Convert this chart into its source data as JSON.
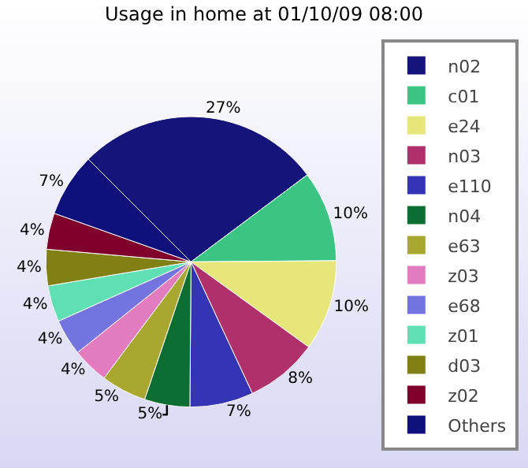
{
  "chart_data": {
    "type": "pie",
    "title": "Usage in home at 01/10/09 08:00",
    "categories": [
      "n02",
      "c01",
      "e24",
      "n03",
      "e110",
      "n04",
      "e63",
      "z03",
      "e68",
      "z01",
      "d03",
      "z02",
      "Others"
    ],
    "values": [
      27,
      10,
      10,
      8,
      7,
      5,
      5,
      4,
      4,
      4,
      4,
      4,
      7
    ],
    "value_labels": [
      "27%",
      "10%",
      "10%",
      "8%",
      "7%",
      "5%",
      "5%",
      "4%",
      "4%",
      "4%",
      "4%",
      "4%",
      "7%"
    ],
    "colors": [
      "#14147a",
      "#3cc484",
      "#e6e67a",
      "#b0306c",
      "#3434b4",
      "#0c6e30",
      "#a8a830",
      "#e27cbe",
      "#7474e0",
      "#5ee0b4",
      "#808014",
      "#80002c",
      "#10107c"
    ],
    "legend": "right"
  }
}
